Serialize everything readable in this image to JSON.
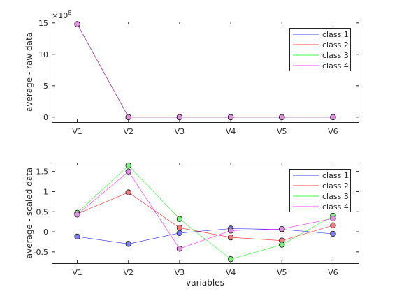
{
  "chart_data": [
    {
      "type": "line",
      "xlabel": "",
      "ylabel": "average - raw data",
      "y_exponent_label": "×10",
      "y_exponent_power": "8",
      "categories": [
        "V1",
        "V2",
        "V3",
        "V4",
        "V5",
        "V6"
      ],
      "ylim": [
        -0.8,
        15.2
      ],
      "yticks": [
        0,
        5,
        10,
        15
      ],
      "ytick_labels": [
        "0",
        "5",
        "10",
        "15"
      ],
      "grid": false,
      "legend_position": "top-right",
      "series": [
        {
          "name": "class 1",
          "color": "#0000ff",
          "marker_fill": "#7b7bf2",
          "values": [
            14.8,
            0,
            0,
            0,
            0,
            0
          ]
        },
        {
          "name": "class 2",
          "color": "#ff0000",
          "marker_fill": "#f27b7b",
          "values": [
            14.8,
            0,
            0,
            0,
            0,
            0
          ]
        },
        {
          "name": "class 3",
          "color": "#00ff00",
          "marker_fill": "#7bf27b",
          "values": [
            14.8,
            0,
            0,
            0,
            0,
            0
          ]
        },
        {
          "name": "class 4",
          "color": "#ff00ff",
          "marker_fill": "#e18ee1",
          "values": [
            14.8,
            0,
            0,
            0,
            0,
            0
          ]
        }
      ]
    },
    {
      "type": "line",
      "xlabel": "variables",
      "ylabel": "average - scaled data",
      "categories": [
        "V1",
        "V2",
        "V3",
        "V4",
        "V5",
        "V6"
      ],
      "ylim": [
        -0.78,
        1.72
      ],
      "yticks": [
        -0.5,
        0,
        0.5,
        1,
        1.5
      ],
      "ytick_labels": [
        "-0.5",
        "0",
        "0.5",
        "1",
        "1.5"
      ],
      "grid": false,
      "legend_position": "top-right",
      "series": [
        {
          "name": "class 1",
          "color": "#0000ff",
          "marker_fill": "#7b7bf2",
          "values": [
            -0.12,
            -0.3,
            -0.03,
            0.08,
            0.06,
            -0.05
          ]
        },
        {
          "name": "class 2",
          "color": "#ff0000",
          "marker_fill": "#f27b7b",
          "values": [
            0.45,
            0.98,
            0.1,
            -0.14,
            -0.22,
            0.16
          ]
        },
        {
          "name": "class 3",
          "color": "#00ff00",
          "marker_fill": "#7bf27b",
          "values": [
            0.47,
            1.65,
            0.32,
            -0.68,
            -0.32,
            0.4
          ]
        },
        {
          "name": "class 4",
          "color": "#ff00ff",
          "marker_fill": "#e18ee1",
          "values": [
            0.43,
            1.5,
            -0.42,
            0.03,
            0.07,
            0.33
          ]
        }
      ]
    }
  ]
}
